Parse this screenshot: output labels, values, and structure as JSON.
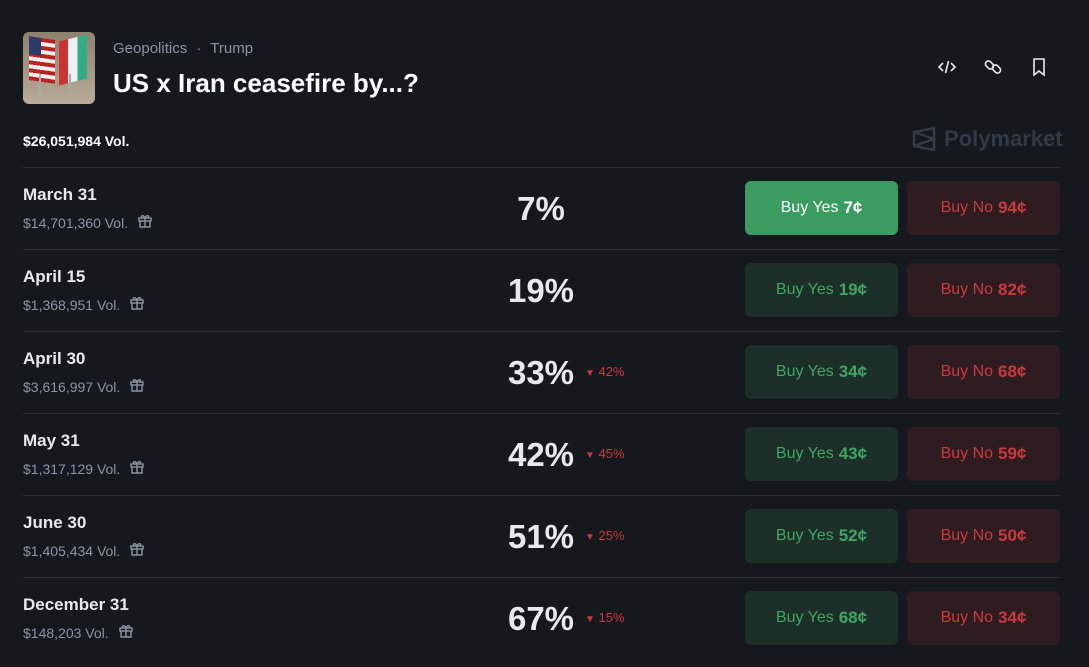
{
  "header": {
    "category": "Geopolitics",
    "separator": "·",
    "tag": "Trump",
    "title": "US x Iran ceasefire by...?",
    "volume": "$26,051,984 Vol.",
    "brand": "Polymarket",
    "icons": [
      "embed-code-icon",
      "link-icon",
      "bookmark-icon"
    ]
  },
  "colors": {
    "yes": "#3fa563",
    "yes_active_bg": "#3a9c5f",
    "no": "#c9393d",
    "background": "#15181d"
  },
  "outcomes": [
    {
      "date": "March 31",
      "volume": "$14,701,360 Vol.",
      "percent": "7%",
      "change": "",
      "yes_label": "Buy Yes",
      "yes_price": "7¢",
      "no_label": "Buy No",
      "no_price": "94¢"
    },
    {
      "date": "April 15",
      "volume": "$1,368,951 Vol.",
      "percent": "19%",
      "change": "",
      "yes_label": "Buy Yes",
      "yes_price": "19¢",
      "no_label": "Buy No",
      "no_price": "82¢"
    },
    {
      "date": "April 30",
      "volume": "$3,616,997 Vol.",
      "percent": "33%",
      "change": "42%",
      "yes_label": "Buy Yes",
      "yes_price": "34¢",
      "no_label": "Buy No",
      "no_price": "68¢"
    },
    {
      "date": "May 31",
      "volume": "$1,317,129 Vol.",
      "percent": "42%",
      "change": "45%",
      "yes_label": "Buy Yes",
      "yes_price": "43¢",
      "no_label": "Buy No",
      "no_price": "59¢"
    },
    {
      "date": "June 30",
      "volume": "$1,405,434 Vol.",
      "percent": "51%",
      "change": "25%",
      "yes_label": "Buy Yes",
      "yes_price": "52¢",
      "no_label": "Buy No",
      "no_price": "50¢"
    },
    {
      "date": "December 31",
      "volume": "$148,203 Vol.",
      "percent": "67%",
      "change": "15%",
      "yes_label": "Buy Yes",
      "yes_price": "68¢",
      "no_label": "Buy No",
      "no_price": "34¢"
    }
  ]
}
